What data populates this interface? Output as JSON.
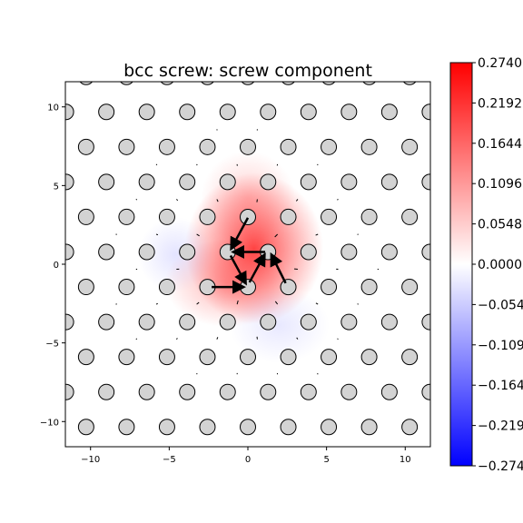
{
  "chart_data": {
    "type": "heatmap",
    "title": "bcc screw: screw component",
    "xlim": [
      -11.6,
      11.6
    ],
    "ylim": [
      -11.6,
      11.6
    ],
    "x_ticks": [
      -10,
      -5,
      0,
      5,
      10
    ],
    "y_ticks": [
      -10,
      -5,
      0,
      5,
      10
    ],
    "x_tick_labels": [
      "−10",
      "−5",
      "0",
      "5",
      "10"
    ],
    "y_tick_labels": [
      "−10",
      "−5",
      "0",
      "5",
      "10"
    ],
    "colorbar": {
      "min": -0.274,
      "max": 0.274,
      "colormap": "bwr",
      "ticks": [
        0.274,
        0.2192,
        0.1644,
        0.1096,
        0.0548,
        0.0,
        -0.0548,
        -0.1096,
        -0.1644,
        -0.2192,
        -0.274
      ],
      "tick_labels": [
        "0.2740",
        "0.2192",
        "0.1644",
        "0.1096",
        "0.0548",
        "0.0000",
        "−0.0548",
        "−0.1096",
        "−0.1644",
        "−0.2192",
        "−0.2740"
      ]
    },
    "lattice": {
      "a": 2.57,
      "row_spacing": 2.225,
      "rows_from": -7,
      "rows_to": 7
    },
    "core_atoms": [
      {
        "x": 0.0,
        "y": 3.0
      },
      {
        "x": -1.28,
        "y": 0.78
      },
      {
        "x": 1.28,
        "y": 0.78
      },
      {
        "x": -2.57,
        "y": -1.45
      },
      {
        "x": 0.0,
        "y": -1.45
      },
      {
        "x": 2.57,
        "y": -1.45
      }
    ],
    "displacement_arrows": [
      {
        "from": [
          0.0,
          2.95
        ],
        "to": [
          -1.0,
          1.1
        ]
      },
      {
        "from": [
          1.1,
          0.78
        ],
        "to": [
          -0.8,
          0.78
        ]
      },
      {
        "from": [
          -1.1,
          0.55
        ],
        "to": [
          -0.2,
          -1.1
        ]
      },
      {
        "from": [
          0.1,
          -1.15
        ],
        "to": [
          1.0,
          0.5
        ]
      },
      {
        "from": [
          -2.3,
          -1.45
        ],
        "to": [
          -0.4,
          -1.45
        ]
      },
      {
        "from": [
          2.4,
          -1.2
        ],
        "to": [
          1.55,
          0.5
        ]
      }
    ],
    "field_blobs": [
      {
        "x": 0.4,
        "y": 1.0,
        "sx": 2.2,
        "sy": 2.4,
        "v": 0.2
      },
      {
        "x": -1.3,
        "y": -1.2,
        "sx": 2.0,
        "sy": 1.4,
        "v": 0.08
      },
      {
        "x": 0.0,
        "y": 4.2,
        "sx": 1.5,
        "sy": 1.5,
        "v": 0.05
      },
      {
        "x": -4.6,
        "y": 0.6,
        "sx": 1.2,
        "sy": 1.2,
        "v": -0.03
      },
      {
        "x": 2.0,
        "y": -3.9,
        "sx": 1.6,
        "sy": 1.2,
        "v": -0.025
      }
    ]
  }
}
